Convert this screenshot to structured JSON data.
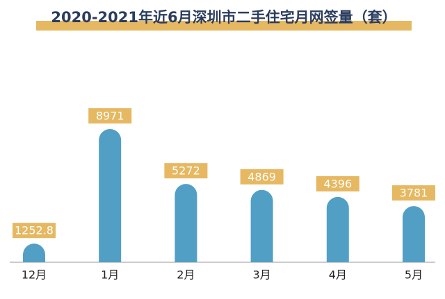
{
  "chart_data": {
    "type": "bar",
    "title": "2020-2021年近6月深圳市二手住宅月网签量（套）",
    "categories": [
      "12月",
      "1月",
      "2月",
      "3月",
      "4月",
      "5月"
    ],
    "values": [
      1252.8,
      8971,
      5272,
      4869,
      4396,
      3781
    ],
    "color": "#529fc6",
    "label_color": "#e6b862"
  }
}
